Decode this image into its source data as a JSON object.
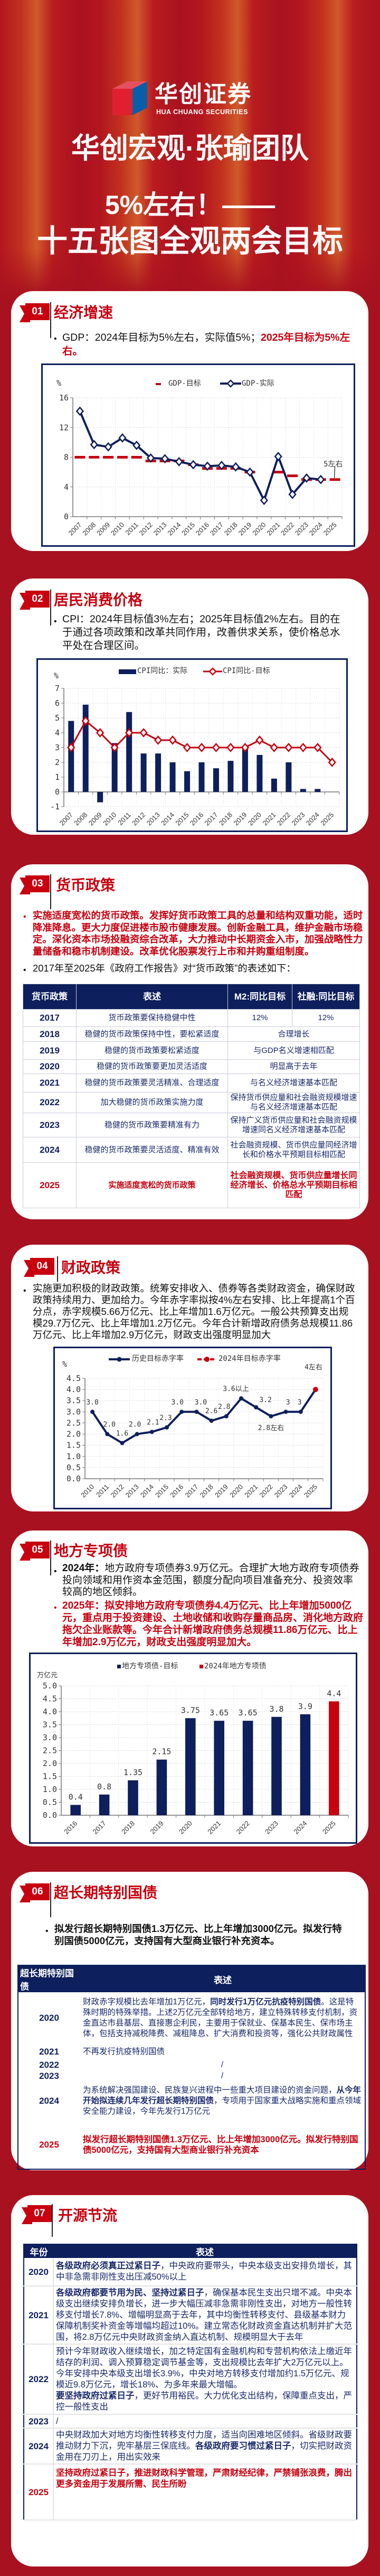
{
  "colors": {
    "page_bg": "#a8111f",
    "accent_red": "#c8000f",
    "navy": "#0d1f5c",
    "card": "#ffffff"
  },
  "header": {
    "logo_cn": "华创证券",
    "logo_en": "HUA CHUANG SECURITIES",
    "team": "华创宏观·张瑜团队",
    "title_line1": "5%左右！——",
    "title_line2": "十五张图全观两会目标"
  },
  "s01": {
    "num": "01",
    "title": "经济增速",
    "text_a": "GDP：2024年目标为5%左右，实际值5%；",
    "text_b": "2025年目标为5%左右。"
  },
  "s02": {
    "num": "02",
    "title": "居民消费价格",
    "text": "CPI：2024年目标值3%左右；2025年目标值2%左右。目的在于通过各项政策和改革共同作用，改善供求关系，使价格总水平处在合理区间。"
  },
  "s03": {
    "num": "03",
    "title": "货币政策",
    "text_red": "实施适度宽松的货币政策。发挥好货币政策工具的总量和结构双重功能，适时降准降息。更大力度促进楼市股市健康发展。创新金融工具，维护金融市场稳定。深化资本市场投融资综合改革，大力推动中长期资金入市，加强战略性力量储备和稳市机制建设。改革优化股票发行上市和并购重组制度。",
    "text_intro": "2017年至2025年《政府工作报告》对“货币政策”的表述如下：",
    "table": {
      "headers": [
        "货币政策",
        "表述",
        "M2:同比目标",
        "社融:同比目标"
      ],
      "rows": [
        {
          "year": "2017",
          "desc": "货币政策要保持稳健中性",
          "m2": "12%",
          "tsf": "12%"
        },
        {
          "year": "2018",
          "desc": "稳健的货币政策保持中性，要松紧适度",
          "target": "合理增长"
        },
        {
          "year": "2019",
          "desc": "稳健的货币政策要松紧适度",
          "target": "与GDP名义增速相匹配"
        },
        {
          "year": "2020",
          "desc": "稳健的货币政策要更加灵活适度",
          "target": "明显高于去年"
        },
        {
          "year": "2021",
          "desc": "稳健的货币政策要灵活精准、合理适度",
          "target": "与名义经济增速基本匹配"
        },
        {
          "year": "2022",
          "desc": "加大稳健的货币政策实施力度",
          "target": "保持货币供应量和社会融资规模增速与名义经济增速基本匹配"
        },
        {
          "year": "2023",
          "desc": "稳健的货币政策要精准有力",
          "target": "保持广义货币供应量和社会融资规模增速同名义经济增速基本匹配"
        },
        {
          "year": "2024",
          "desc": "稳健的货币政策要灵活适度、精准有效",
          "target": "社会融资规模、货币供应量同经济增长和价格水平预期目标相匹配"
        },
        {
          "year": "2025",
          "desc": "实施适度宽松的货币政策",
          "target": "社会融资规模、货币供应量增长同经济增长、价格总水平预期目标相匹配"
        }
      ]
    }
  },
  "s04": {
    "num": "04",
    "title": "财政政策",
    "text": "实施更加积极的财政政策。统筹安排收入、债券等各类财政资金，确保财政政策持续用力、更加给力。今年赤字率拟按4%左右安排、比上年提高1个百分点，赤字规模5.66万亿元、比上年增加1.6万亿元。一般公共预算支出规模29.7万亿元、比上年增加1.2万亿元。今年合计新增政府债务总规模11.86万亿元、比上年增加2.9万亿元，财政支出强度明显加大"
  },
  "s05": {
    "num": "05",
    "title": "地方专项债",
    "b1_label": "2024年：",
    "b1_text": "地方政府专项债券3.9万亿元。合理扩大地方政府专项债券投向领域和用作资本金范围，额度分配向项目准备充分、投资效率较高的地区倾斜。",
    "b2_text": "2025年：拟安排地方政府专项债券4.4万亿元、比上年增加5000亿元，重点用于投资建设、土地收储和收购存量商品房、消化地方政府拖欠企业账款等。今年合计新增政府债务总规模11.86万亿元、比上年增加2.9万亿元，财政支出强度明显加大。"
  },
  "s06": {
    "num": "06",
    "title": "超长期特别国债",
    "text": "拟发行超长期特别国债1.3万亿元、比上年增加3000亿元。拟发行特别国债5000亿元，支持国有大型商业银行补充资本。",
    "table": {
      "headers": [
        "超长期特别国债",
        "表述"
      ],
      "rows": [
        {
          "year": "2020",
          "seg": [
            "财政赤字规模比去年增加1万亿元，",
            "同时发行1万亿元抗疫特别国债",
            "。这是特殊时期的特殊举措。上述2万亿元全部转给地方，建立特殊转移支付机制，资金直达市县基层、直接惠企利民，主要用于保就业、保基本民生、保市场主体，包括支持减税降费、减租降息、扩大消费和投资等，强化公共财政属性"
          ]
        },
        {
          "year": "2021",
          "seg": [
            "不再发行抗疫特别国债"
          ]
        },
        {
          "year": "2022",
          "seg": [
            "/"
          ]
        },
        {
          "year": "2023",
          "seg": [
            "/"
          ]
        },
        {
          "year": "2024",
          "seg": [
            "为系统解决强国建设、民族复兴进程中一些重大项目建设的资金问题，",
            "从今年开始拟连续几年发行超长期特别国债",
            "，专项用于国家重大战略实施和重点领域安全能力建设，今年先发行1万亿元"
          ]
        },
        {
          "year": "2025",
          "seg": [
            "拟发行超长期特别国债1.3万亿元、比上年增加3000亿元。拟发行特别国债5000亿元，支持国有大型商业银行补充资本"
          ]
        }
      ]
    }
  },
  "s07": {
    "num": "07",
    "title": "开源节流",
    "table": {
      "headers": [
        "年份",
        "表述"
      ],
      "rows": [
        {
          "year": "2020",
          "seg": [
            "各级政府必须真正过紧日子",
            "，中央政府要带头，中央本级支出安排负增长，其中非急需非刚性支出压减50%以上"
          ]
        },
        {
          "year": "2021",
          "seg": [
            "各级政府都要节用为民、坚持过紧日子",
            "，确保基本民生支出只增不减。中央本级支出继续安排负增长，进一步大幅压减非急需非刚性支出，对地方一般性转移支付增长7.8%、增幅明显高于去年，其中均衡性转移支付、县级基本财力保障机制奖补资金等增幅均超过10%。建立常态化财政资金直达机制并扩大范围，将2.8万亿元中央财政资金纳入直达机制、规模明显大于去年"
          ]
        },
        {
          "year": "2022",
          "seg": [
            "预计今年财政收入继续增长，加之特定国有金融机构和专营机构依法上缴近年结存的利润、调入预算稳定调节基金等，支出规模比去年扩大2万亿元以上。今年安排中央本级支出增长3.9%，中央对地方转移支付增加约1.5万亿元、规模近9.8万亿元，增长18%、为多年来最大增幅。",
            "要坚持政府过紧日子",
            "，更好节用裕民。大力优化支出结构，保障重点支出，严控一般性支出"
          ]
        },
        {
          "year": "2023",
          "seg": [
            "/"
          ]
        },
        {
          "year": "2024",
          "seg": [
            "中央财政加大对地方均衡性转移支付力度，适当向困难地区倾斜。省级财政要推动财力下沉，兜牢基层三保底线。",
            "各级政府要习惯过紧日子",
            "，切实把财政资金用在刀刃上，用出实效来"
          ]
        },
        {
          "year": "2025",
          "seg": [
            "坚持政府过紧日子，推进财政科学管理，严肃财经纪律，严禁铺张浪费，腾出更多资金用于发展所需、民生所盼"
          ]
        }
      ]
    }
  },
  "chart_data": [
    {
      "type": "line",
      "ylabel": "%",
      "ylim": [
        0,
        16
      ],
      "ystep": 4,
      "grid": true,
      "legend": "top",
      "categories": [
        "2007",
        "2008",
        "2009",
        "2010",
        "2011",
        "2012",
        "2013",
        "2014",
        "2015",
        "2016",
        "2017",
        "2018",
        "2019",
        "2020",
        "2021",
        "2022",
        "2023",
        "2024",
        "2025"
      ],
      "series": [
        {
          "name": "GDP-目标",
          "style": "dash-marks",
          "color": "#c8000f",
          "values": [
            8,
            8,
            8,
            8,
            8,
            7.5,
            7.5,
            7.5,
            7,
            6.5,
            6.5,
            6.5,
            6,
            null,
            6,
            5.5,
            5,
            5,
            5
          ]
        },
        {
          "name": "GDP-实际",
          "style": "line-diamond",
          "color": "#0d1f5c",
          "values": [
            14.2,
            9.7,
            9.4,
            10.6,
            9.6,
            7.9,
            7.8,
            7.4,
            7.0,
            6.8,
            6.9,
            6.7,
            6.0,
            2.2,
            8.1,
            3.0,
            5.2,
            5.0,
            null
          ]
        }
      ],
      "annotation": "5左右"
    },
    {
      "type": "bar",
      "ylabel": "%",
      "ylim": [
        -1,
        7
      ],
      "ystep": 1,
      "grid": true,
      "legend": "top",
      "categories": [
        "2007",
        "2008",
        "2009",
        "2010",
        "2011",
        "2012",
        "2013",
        "2014",
        "2015",
        "2016",
        "2017",
        "2018",
        "2019",
        "2020",
        "2021",
        "2022",
        "2023",
        "2024",
        "2025"
      ],
      "series": [
        {
          "name": "CPI同比：实际",
          "style": "bar",
          "color": "#0d1f5c",
          "values": [
            4.8,
            5.9,
            -0.7,
            3.3,
            5.4,
            2.6,
            2.6,
            2.0,
            1.4,
            2.0,
            1.6,
            2.1,
            2.9,
            2.5,
            0.9,
            2.0,
            0.2,
            0.2,
            null
          ]
        },
        {
          "name": "CPI同比-目标",
          "style": "line-diamond",
          "color": "#c8000f",
          "values": [
            3,
            4.8,
            4,
            3,
            4,
            4,
            3.5,
            3.5,
            3,
            3,
            3,
            3,
            3,
            3.5,
            3,
            3,
            3,
            3,
            2
          ]
        }
      ]
    },
    {
      "type": "line",
      "ylabel": "%",
      "ylim": [
        0,
        4.5
      ],
      "ystep": 0.5,
      "grid": true,
      "legend": "top",
      "categories": [
        "2010",
        "2011",
        "2012",
        "2013",
        "2014",
        "2015",
        "2016",
        "2017",
        "2018",
        "2019",
        "2020",
        "2021",
        "2022",
        "2023",
        "2024",
        "2025"
      ],
      "series": [
        {
          "name": "历史目标赤字率",
          "style": "line-dot",
          "color": "#0d1f5c",
          "values": [
            3.0,
            2.0,
            1.6,
            2.0,
            2.1,
            2.3,
            3.0,
            3.0,
            2.6,
            2.8,
            3.6,
            3.2,
            2.8,
            3,
            3,
            4
          ]
        },
        {
          "name": "2024年目标赤字率",
          "style": "highlight-last",
          "color": "#c8000f",
          "values": [
            null,
            null,
            null,
            null,
            null,
            null,
            null,
            null,
            null,
            null,
            null,
            null,
            null,
            null,
            null,
            4
          ]
        }
      ],
      "labels": [
        "3.0",
        "2.0",
        "1.6",
        "2.0",
        "2.1",
        "2.3",
        "3.0",
        "3.0",
        "2.6",
        "2.8",
        "3.6以上",
        "3.2",
        "2.8左右",
        "3",
        "3",
        "4左右"
      ]
    },
    {
      "type": "bar",
      "ylabel": "万亿元",
      "ylim": [
        0,
        5
      ],
      "ystep": 0.5,
      "grid": true,
      "legend": "top",
      "categories": [
        "2016",
        "2017",
        "2018",
        "2019",
        "2020",
        "2021",
        "2022",
        "2023",
        "2024",
        "2025"
      ],
      "series": [
        {
          "name": "地方专项债-目标",
          "color": "#0d1f5c",
          "values": [
            0.4,
            0.8,
            1.35,
            2.15,
            3.75,
            3.65,
            3.65,
            3.8,
            3.9,
            null
          ]
        },
        {
          "name": "2024年地方专项债",
          "color": "#c8000f",
          "values": [
            null,
            null,
            null,
            null,
            null,
            null,
            null,
            null,
            null,
            4.4
          ]
        }
      ],
      "labels": [
        "0.4",
        "0.8",
        "1.35",
        "2.15",
        "3.75",
        "3.65",
        "3.65",
        "3.8",
        "3.9",
        "4.4"
      ]
    }
  ]
}
